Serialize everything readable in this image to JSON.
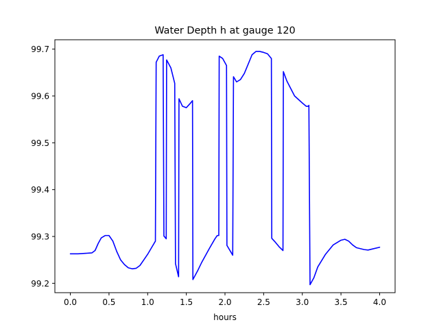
{
  "chart_data": {
    "type": "line",
    "title": "Water Depth h at gauge 120",
    "xlabel": "hours",
    "ylabel": "",
    "xlim": [
      -0.2,
      4.2
    ],
    "ylim": [
      99.18,
      99.72
    ],
    "xticks": [
      0.0,
      0.5,
      1.0,
      1.5,
      2.0,
      2.5,
      3.0,
      3.5,
      4.0
    ],
    "xtick_labels": [
      "0.0",
      "0.5",
      "1.0",
      "1.5",
      "2.0",
      "2.5",
      "3.0",
      "3.5",
      "4.0"
    ],
    "yticks": [
      99.2,
      99.3,
      99.4,
      99.5,
      99.6,
      99.7
    ],
    "ytick_labels": [
      "99.2",
      "99.3",
      "99.4",
      "99.5",
      "99.6",
      "99.7"
    ],
    "grid": false,
    "series": [
      {
        "color": "#0000ff",
        "x": [
          0.0,
          0.1,
          0.2,
          0.28,
          0.32,
          0.36,
          0.4,
          0.45,
          0.5,
          0.55,
          0.6,
          0.65,
          0.7,
          0.75,
          0.8,
          0.85,
          0.9,
          0.95,
          1.0,
          1.05,
          1.1,
          1.11,
          1.15,
          1.2,
          1.21,
          1.24,
          1.245,
          1.3,
          1.35,
          1.36,
          1.4,
          1.405,
          1.45,
          1.5,
          1.55,
          1.58,
          1.585,
          1.65,
          1.7,
          1.8,
          1.87,
          1.9,
          1.92,
          1.925,
          1.97,
          2.02,
          2.025,
          2.1,
          2.11,
          2.15,
          2.2,
          2.25,
          2.3,
          2.35,
          2.4,
          2.45,
          2.5,
          2.55,
          2.6,
          2.605,
          2.65,
          2.7,
          2.75,
          2.755,
          2.8,
          2.9,
          3.0,
          3.05,
          3.08,
          3.085,
          3.1,
          3.15,
          3.2,
          3.3,
          3.4,
          3.5,
          3.55,
          3.6,
          3.65,
          3.7,
          3.8,
          3.85,
          3.9,
          4.0
        ],
        "y": [
          99.263,
          99.263,
          99.264,
          99.265,
          99.27,
          99.285,
          99.297,
          99.302,
          99.302,
          99.29,
          99.268,
          99.25,
          99.24,
          99.233,
          99.231,
          99.232,
          99.238,
          99.25,
          99.262,
          99.276,
          99.29,
          99.672,
          99.685,
          99.688,
          99.301,
          99.295,
          99.677,
          99.66,
          99.627,
          99.242,
          99.214,
          99.594,
          99.578,
          99.575,
          99.584,
          99.59,
          99.208,
          99.228,
          99.245,
          99.275,
          99.295,
          99.302,
          99.302,
          99.685,
          99.68,
          99.665,
          99.281,
          99.26,
          99.641,
          99.63,
          99.635,
          99.648,
          99.668,
          99.688,
          99.695,
          99.695,
          99.693,
          99.69,
          99.68,
          99.296,
          99.288,
          99.278,
          99.27,
          99.652,
          99.632,
          99.6,
          99.585,
          99.578,
          99.578,
          99.58,
          99.197,
          99.212,
          99.235,
          99.262,
          99.282,
          99.292,
          99.294,
          99.29,
          99.282,
          99.276,
          99.272,
          99.271,
          99.273,
          99.277
        ]
      }
    ]
  }
}
